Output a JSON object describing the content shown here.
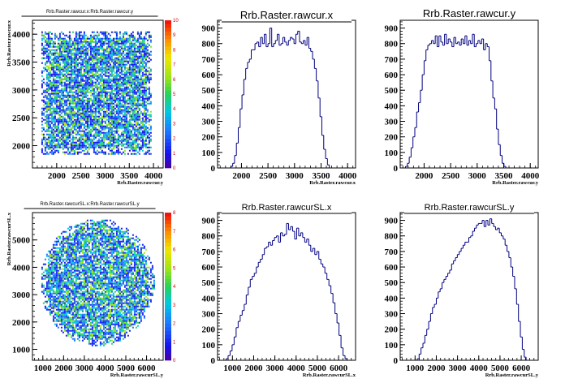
{
  "colors": {
    "hist_line": "#000080",
    "axis": "#000000",
    "background": "#ffffff"
  },
  "chart_data": [
    {
      "type": "heatmap",
      "title": "Rrb.Raster.rawcur.x:Rrb.Raster.rawcur.y",
      "xlabel": "Rrb.Raster.rawcur.y",
      "ylabel": "Rrb.Raster.rawcur.x",
      "xlim": [
        1500,
        4200
      ],
      "ylim": [
        1600,
        4250
      ],
      "xticks": [
        "2000",
        "2500",
        "3000",
        "3500",
        "4000"
      ],
      "yticks": [
        "2000",
        "2500",
        "3000",
        "3500",
        "4000"
      ],
      "zlim": [
        0,
        10
      ],
      "zticks": [
        "0",
        "1",
        "2",
        "3",
        "4",
        "5",
        "6",
        "7",
        "8",
        "9",
        "10"
      ],
      "shape": "square",
      "region": {
        "xmin": 1650,
        "xmax": 3950,
        "ymin": 1850,
        "ymax": 4050
      }
    },
    {
      "type": "area",
      "title": "Rrb.Raster.rawcur.x",
      "xlabel": "Rrb.Raster.rawcur.x",
      "xlim": [
        1550,
        4150
      ],
      "ylim": [
        0,
        950
      ],
      "xticks": [
        "2000",
        "2500",
        "3000",
        "3500",
        "4000"
      ],
      "yticks": [
        "0",
        "100",
        "200",
        "300",
        "400",
        "500",
        "600",
        "700",
        "800",
        "900"
      ],
      "bin_start": 1800,
      "bin_width": 35,
      "values": [
        10,
        30,
        80,
        160,
        260,
        380,
        470,
        570,
        640,
        680,
        700,
        760,
        760,
        800,
        810,
        780,
        840,
        800,
        860,
        780,
        800,
        900,
        780,
        800,
        820,
        860,
        790,
        800,
        840,
        810,
        790,
        820,
        840,
        830,
        800,
        860,
        880,
        810,
        800,
        820,
        790,
        840,
        770,
        750,
        700,
        640,
        560,
        450,
        330,
        210,
        120,
        60,
        20
      ]
    },
    {
      "type": "area",
      "title": "Rrb.Raster.rawcur.y",
      "xlabel": "Rrb.Raster.rawcur.y",
      "xlim": [
        1550,
        4150
      ],
      "ylim": [
        0,
        950
      ],
      "xticks": [
        "2000",
        "2500",
        "3000",
        "3500",
        "4000"
      ],
      "yticks": [
        "0",
        "100",
        "200",
        "300",
        "400",
        "500",
        "600",
        "700",
        "800",
        "900"
      ],
      "bin_start": 1650,
      "bin_width": 35,
      "values": [
        10,
        30,
        70,
        130,
        200,
        260,
        360,
        420,
        500,
        600,
        690,
        760,
        790,
        800,
        820,
        800,
        850,
        780,
        850,
        810,
        790,
        860,
        800,
        830,
        810,
        780,
        840,
        800,
        810,
        790,
        830,
        800,
        850,
        790,
        820,
        800,
        860,
        780,
        800,
        820,
        800,
        830,
        760,
        800,
        780,
        690,
        560,
        450,
        380,
        250,
        150,
        80,
        30,
        10
      ]
    },
    {
      "type": "heatmap",
      "title": "Rrb.Raster.rawcurSL.x:Rrb.Raster.rawcurSL.y",
      "xlabel": "Rrb.Raster.rawcurSL.y",
      "ylabel": "Rrb.Raster.rawcurSL.x",
      "xlim": [
        500,
        6800
      ],
      "ylim": [
        600,
        6000
      ],
      "xticks": [
        "1000",
        "2000",
        "3000",
        "4000",
        "5000",
        "6000"
      ],
      "yticks": [
        "1000",
        "2000",
        "3000",
        "4000",
        "5000"
      ],
      "zlim": [
        0,
        8
      ],
      "zticks": [
        "0",
        "1",
        "2",
        "3",
        "4",
        "5",
        "6",
        "7",
        "8"
      ],
      "shape": "ellipse",
      "region": {
        "xmin": 850,
        "xmax": 6350,
        "ymin": 1150,
        "ymax": 5800
      }
    },
    {
      "type": "area",
      "title": "Rrb.Raster.rawcurSL.x",
      "xlabel": "Rrb.Raster.rawcurSL.x",
      "xlim": [
        300,
        6800
      ],
      "ylim": [
        0,
        950
      ],
      "xticks": [
        "1000",
        "2000",
        "3000",
        "4000",
        "5000",
        "6000"
      ],
      "yticks": [
        "0",
        "100",
        "200",
        "300",
        "400",
        "500",
        "600",
        "700",
        "800",
        "900"
      ],
      "bin_start": 700,
      "bin_width": 95,
      "values": [
        10,
        30,
        60,
        100,
        150,
        210,
        250,
        290,
        320,
        360,
        420,
        470,
        520,
        540,
        560,
        600,
        630,
        650,
        680,
        720,
        730,
        760,
        740,
        770,
        790,
        800,
        760,
        820,
        800,
        810,
        880,
        840,
        860,
        830,
        780,
        850,
        800,
        820,
        790,
        760,
        780,
        740,
        700,
        720,
        680,
        700,
        650,
        620,
        600,
        560,
        520,
        480,
        430,
        370,
        300,
        240,
        160,
        80,
        30,
        10
      ]
    },
    {
      "type": "area",
      "title": "Rrb.Raster.rawcurSL.y",
      "xlabel": "Rrb.Raster.rawcurSL.y",
      "xlim": [
        300,
        6800
      ],
      "ylim": [
        0,
        950
      ],
      "xticks": [
        "1000",
        "2000",
        "3000",
        "4000",
        "5000",
        "6000"
      ],
      "yticks": [
        "0",
        "100",
        "200",
        "300",
        "400",
        "500",
        "600",
        "700",
        "800",
        "900"
      ],
      "bin_start": 1100,
      "bin_width": 90,
      "values": [
        10,
        40,
        80,
        110,
        160,
        200,
        250,
        300,
        340,
        360,
        400,
        440,
        460,
        500,
        520,
        540,
        560,
        580,
        620,
        640,
        660,
        680,
        700,
        720,
        740,
        760,
        760,
        790,
        800,
        830,
        850,
        870,
        880,
        880,
        900,
        860,
        900,
        870,
        910,
        880,
        860,
        840,
        850,
        820,
        800,
        780,
        740,
        700,
        660,
        600,
        540,
        460,
        360,
        250,
        150,
        70,
        20
      ]
    }
  ]
}
